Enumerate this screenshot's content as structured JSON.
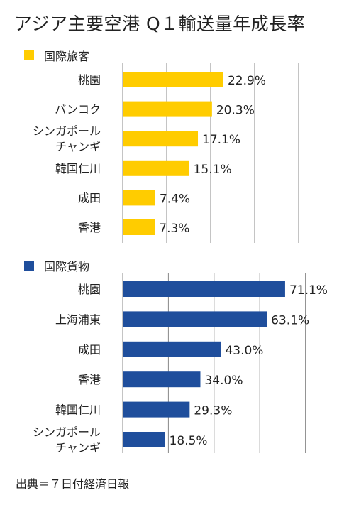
{
  "title": "アジア主要空港 Q１輸送量年成長率",
  "source": "出典＝７日付経済日報",
  "colors": {
    "passenger": "#FFCC00",
    "cargo": "#1F4E9C",
    "grid": "#888888"
  },
  "chart_data": [
    {
      "type": "bar",
      "orientation": "horizontal",
      "legend": "国際旅客",
      "unit": "%",
      "categories": [
        [
          "桃園"
        ],
        [
          "バンコク"
        ],
        [
          "シンガポール",
          "チャンギ"
        ],
        [
          "韓国仁川"
        ],
        [
          "成田"
        ],
        [
          "香港"
        ]
      ],
      "values": [
        22.9,
        20.3,
        17.1,
        15.1,
        7.4,
        7.3
      ],
      "value_labels": [
        "22.9%",
        "20.3%",
        "17.1%",
        "15.1%",
        "7.4%",
        "7.3%"
      ],
      "xlim": [
        0,
        50
      ],
      "grid": true
    },
    {
      "type": "bar",
      "orientation": "horizontal",
      "legend": "国際貨物",
      "unit": "%",
      "categories": [
        [
          "桃園"
        ],
        [
          "上海浦東"
        ],
        [
          "成田"
        ],
        [
          "香港"
        ],
        [
          "韓国仁川"
        ],
        [
          "シンガポール",
          "チャンギ"
        ]
      ],
      "values": [
        71.1,
        63.1,
        43.0,
        34.0,
        29.3,
        18.5
      ],
      "value_labels": [
        "71.1%",
        "63.1%",
        "43.0%",
        "34.0%",
        "29.3%",
        "18.5%"
      ],
      "xlim": [
        0,
        100
      ],
      "grid": true
    }
  ]
}
